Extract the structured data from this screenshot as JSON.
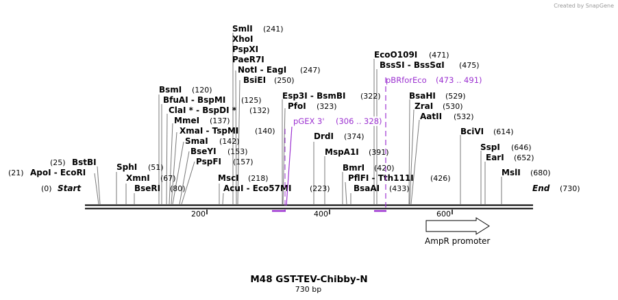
{
  "credit": "Created by SnapGene",
  "title": "M48 GST-TEV-Chibby-N",
  "length_label": "730 bp",
  "axis": {
    "ticks": [
      "200",
      "400",
      "600"
    ]
  },
  "ends": {
    "start_label": "Start",
    "start_pos": "(0)",
    "end_label": "End",
    "end_pos": "(730)"
  },
  "feature": {
    "label": "AmpR promoter"
  },
  "primers": [
    {
      "name": "pGEX 3'",
      "range": "(306 .. 328)"
    },
    {
      "name": "pBRforEco",
      "range": "(473 .. 491)"
    }
  ],
  "sites": [
    {
      "name": "ApoI  -  EcoRI",
      "pos": "(21)"
    },
    {
      "name": "BstBI",
      "pos": "(25)"
    },
    {
      "name": "SphI",
      "pos": "(51)"
    },
    {
      "name": "XmnI",
      "pos": "(67)"
    },
    {
      "name": "BseRI",
      "pos": "(80)"
    },
    {
      "name": "BsmI",
      "pos": "(120)"
    },
    {
      "name": "BfuAI  -  BspMI",
      "pos": "(125)"
    },
    {
      "name": "ClaI *  -  BspDI *",
      "pos": "(132)"
    },
    {
      "name": "MmeI",
      "pos": "(137)"
    },
    {
      "name": "XmaI  -  TspMI",
      "pos": "(140)"
    },
    {
      "name": "SmaI",
      "pos": "(142)"
    },
    {
      "name": "BseYI",
      "pos": "(153)"
    },
    {
      "name": "PspFI",
      "pos": "(157)"
    },
    {
      "name": "MscI",
      "pos": "(218)"
    },
    {
      "name": "AcuI  -  Eco57MI",
      "pos": "(223)"
    },
    {
      "name": "SmlI",
      "pos": "(241)"
    },
    {
      "name": "XhoI",
      "pos": ""
    },
    {
      "name": "PspXI",
      "pos": ""
    },
    {
      "name": "PaeR7I",
      "pos": ""
    },
    {
      "name": "NotI  -  EagI",
      "pos": "(247)"
    },
    {
      "name": "BsiEI",
      "pos": "(250)"
    },
    {
      "name": "Esp3I  -  BsmBI",
      "pos": "(322)"
    },
    {
      "name": "PfoI",
      "pos": "(323)"
    },
    {
      "name": "DrdI",
      "pos": "(374)"
    },
    {
      "name": "MspA1I",
      "pos": "(391)"
    },
    {
      "name": "BmrI",
      "pos": "(420)"
    },
    {
      "name": "PflFI  -  Tth111I",
      "pos": "(426)"
    },
    {
      "name": "BsaAI",
      "pos": "(433)"
    },
    {
      "name": "EcoO109I",
      "pos": "(471)"
    },
    {
      "name": "BssSI  -  BssSαI",
      "pos": "(475)"
    },
    {
      "name": "BsaHI",
      "pos": "(529)"
    },
    {
      "name": "ZraI",
      "pos": "(530)"
    },
    {
      "name": "AatII",
      "pos": "(532)"
    },
    {
      "name": "BciVI",
      "pos": "(614)"
    },
    {
      "name": "SspI",
      "pos": "(646)"
    },
    {
      "name": "EarI",
      "pos": "(652)"
    },
    {
      "name": "MslI",
      "pos": "(680)"
    }
  ],
  "colors": {
    "primer": "#9b30d0",
    "backbone": "#000000"
  }
}
